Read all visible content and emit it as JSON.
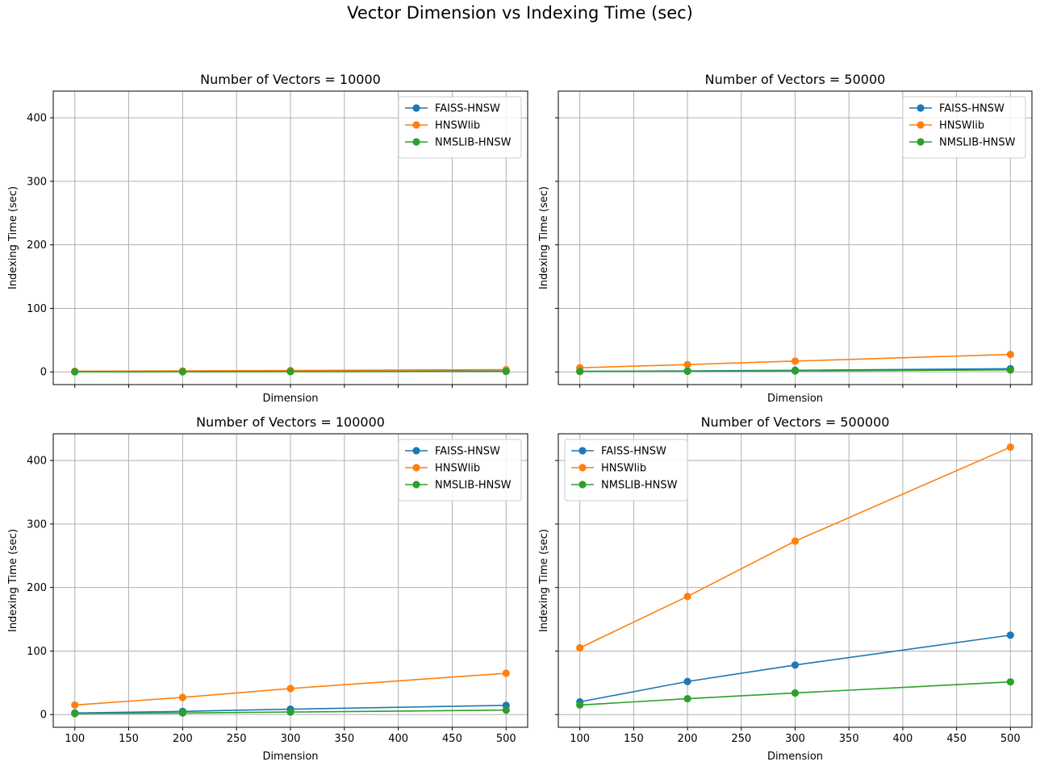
{
  "figure": {
    "title": "Vector Dimension vs Indexing Time (sec)"
  },
  "colors": {
    "FAISS-HNSW": "#1f77b4",
    "HNSWlib": "#ff7f0e",
    "NMSLIB-HNSW": "#2ca02c",
    "grid": "#b0b0b0"
  },
  "chart_data": [
    {
      "type": "line",
      "title": "Number of Vectors = 10000",
      "xlabel": "Dimension",
      "ylabel": "Indexing Time (sec)",
      "x": [
        100,
        200,
        300,
        500
      ],
      "xlim": [
        80,
        520
      ],
      "ylim": [
        -20,
        442
      ],
      "xticks": [
        100,
        150,
        200,
        250,
        300,
        350,
        400,
        450,
        500
      ],
      "yticks": [
        0,
        100,
        200,
        300,
        400
      ],
      "show_xticklabels": false,
      "show_yticklabels": true,
      "grid": true,
      "legend": "upper right",
      "series": [
        {
          "name": "FAISS-HNSW",
          "values": [
            0.3,
            0.5,
            0.8,
            1.3
          ]
        },
        {
          "name": "HNSWlib",
          "values": [
            1.0,
            1.5,
            2.2,
            3.5
          ]
        },
        {
          "name": "NMSLIB-HNSW",
          "values": [
            0.2,
            0.3,
            0.5,
            0.8
          ]
        }
      ]
    },
    {
      "type": "line",
      "title": "Number of Vectors = 50000",
      "xlabel": "Dimension",
      "ylabel": "Indexing Time (sec)",
      "x": [
        100,
        200,
        300,
        500
      ],
      "xlim": [
        80,
        520
      ],
      "ylim": [
        -20,
        442
      ],
      "xticks": [
        100,
        150,
        200,
        250,
        300,
        350,
        400,
        450,
        500
      ],
      "yticks": [
        0,
        100,
        200,
        300,
        400
      ],
      "show_xticklabels": false,
      "show_yticklabels": false,
      "grid": true,
      "legend": "upper right",
      "series": [
        {
          "name": "FAISS-HNSW",
          "values": [
            0.8,
            1.5,
            2.5,
            5.0
          ]
        },
        {
          "name": "HNSWlib",
          "values": [
            6.5,
            11.5,
            17.0,
            27.5
          ]
        },
        {
          "name": "NMSLIB-HNSW",
          "values": [
            0.7,
            1.0,
            1.5,
            3.0
          ]
        }
      ]
    },
    {
      "type": "line",
      "title": "Number of Vectors = 100000",
      "xlabel": "Dimension",
      "ylabel": "Indexing Time (sec)",
      "x": [
        100,
        200,
        300,
        500
      ],
      "xlim": [
        80,
        520
      ],
      "ylim": [
        -20,
        442
      ],
      "xticks": [
        100,
        150,
        200,
        250,
        300,
        350,
        400,
        450,
        500
      ],
      "yticks": [
        0,
        100,
        200,
        300,
        400
      ],
      "show_xticklabels": true,
      "show_yticklabels": true,
      "grid": true,
      "legend": "upper right",
      "series": [
        {
          "name": "FAISS-HNSW",
          "values": [
            2.5,
            5.0,
            8.5,
            14.5
          ]
        },
        {
          "name": "HNSWlib",
          "values": [
            15.0,
            27.0,
            41.0,
            65.0
          ]
        },
        {
          "name": "NMSLIB-HNSW",
          "values": [
            1.5,
            2.5,
            4.0,
            7.0
          ]
        }
      ]
    },
    {
      "type": "line",
      "title": "Number of Vectors = 500000",
      "xlabel": "Dimension",
      "ylabel": "Indexing Time (sec)",
      "x": [
        100,
        200,
        300,
        500
      ],
      "xlim": [
        80,
        520
      ],
      "ylim": [
        -20,
        442
      ],
      "xticks": [
        100,
        150,
        200,
        250,
        300,
        350,
        400,
        450,
        500
      ],
      "yticks": [
        0,
        100,
        200,
        300,
        400
      ],
      "show_xticklabels": true,
      "show_yticklabels": false,
      "grid": true,
      "legend": "upper left",
      "series": [
        {
          "name": "FAISS-HNSW",
          "values": [
            20.0,
            52.0,
            78.0,
            125.0
          ]
        },
        {
          "name": "HNSWlib",
          "values": [
            105.0,
            186.0,
            273.0,
            421.0
          ]
        },
        {
          "name": "NMSLIB-HNSW",
          "values": [
            15.0,
            25.0,
            34.0,
            51.5
          ]
        }
      ]
    }
  ]
}
